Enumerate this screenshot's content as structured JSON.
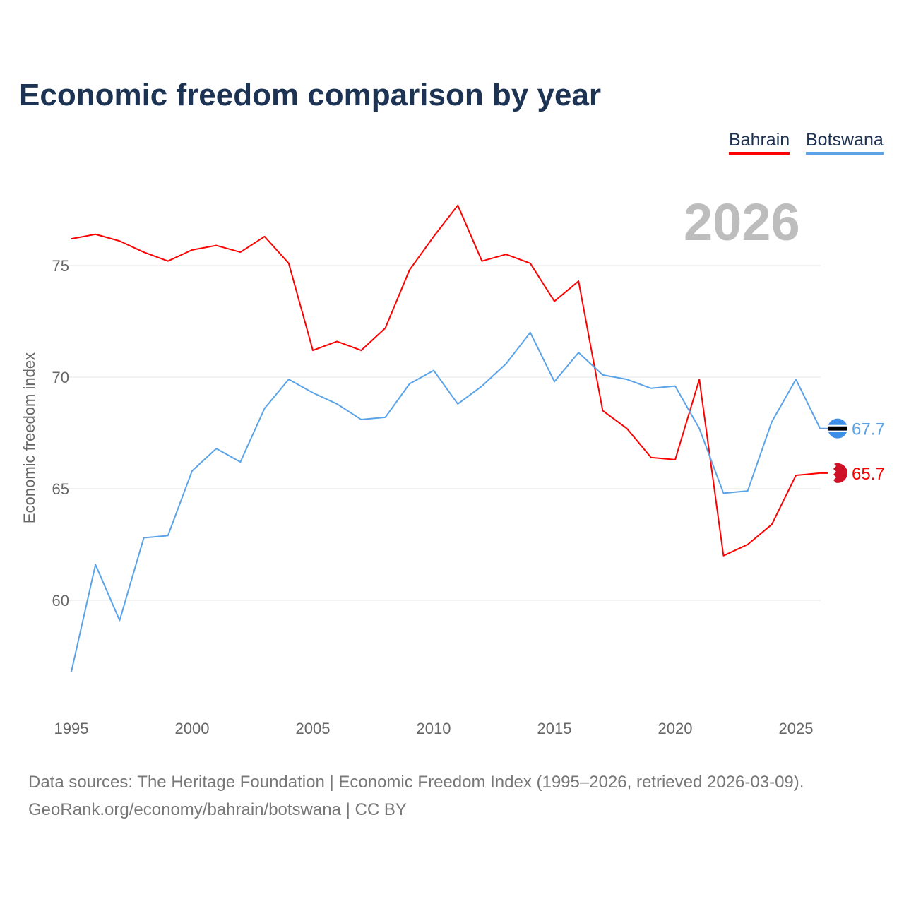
{
  "chart_data": {
    "type": "line",
    "title": "Economic freedom comparison by year",
    "ylabel": "Economic freedom index",
    "xlabel": "",
    "ylim": [
      55.0,
      78.8
    ],
    "xlim": [
      1995,
      2026
    ],
    "yticks": [
      60,
      65,
      70,
      75
    ],
    "xticks": [
      1995,
      2000,
      2005,
      2010,
      2015,
      2020,
      2025
    ],
    "grid": true,
    "legend_position": "top-right",
    "current_year_label": "2026",
    "x": [
      1995,
      1996,
      1997,
      1998,
      1999,
      2000,
      2001,
      2002,
      2003,
      2004,
      2005,
      2006,
      2007,
      2008,
      2009,
      2010,
      2011,
      2012,
      2013,
      2014,
      2015,
      2016,
      2017,
      2018,
      2019,
      2020,
      2021,
      2022,
      2023,
      2024,
      2025,
      2026
    ],
    "series": [
      {
        "name": "Bahrain",
        "color": "#ff0000",
        "end_label": "65.7",
        "values": [
          76.2,
          76.4,
          76.1,
          75.6,
          75.2,
          75.7,
          75.9,
          75.6,
          76.3,
          75.1,
          71.2,
          71.6,
          71.2,
          72.2,
          74.8,
          76.3,
          77.7,
          75.2,
          75.5,
          75.1,
          73.4,
          74.3,
          68.5,
          67.7,
          66.4,
          66.3,
          69.9,
          62.0,
          62.5,
          63.4,
          65.6,
          65.7
        ]
      },
      {
        "name": "Botswana",
        "color": "#5ba3e8",
        "end_label": "67.7",
        "values": [
          56.8,
          61.6,
          59.1,
          62.8,
          62.9,
          65.8,
          66.8,
          66.2,
          68.6,
          69.9,
          69.3,
          68.8,
          68.1,
          68.2,
          69.7,
          70.3,
          68.8,
          69.6,
          70.6,
          72.0,
          69.8,
          71.1,
          70.1,
          69.9,
          69.5,
          69.6,
          67.7,
          64.8,
          64.9,
          68.0,
          69.9,
          67.7
        ]
      }
    ]
  },
  "source": {
    "line1": "Data sources: The Heritage Foundation | Economic Freedom Index (1995–2026, retrieved 2026-03-09).",
    "line2": "GeoRank.org/economy/bahrain/botswana | CC BY"
  }
}
